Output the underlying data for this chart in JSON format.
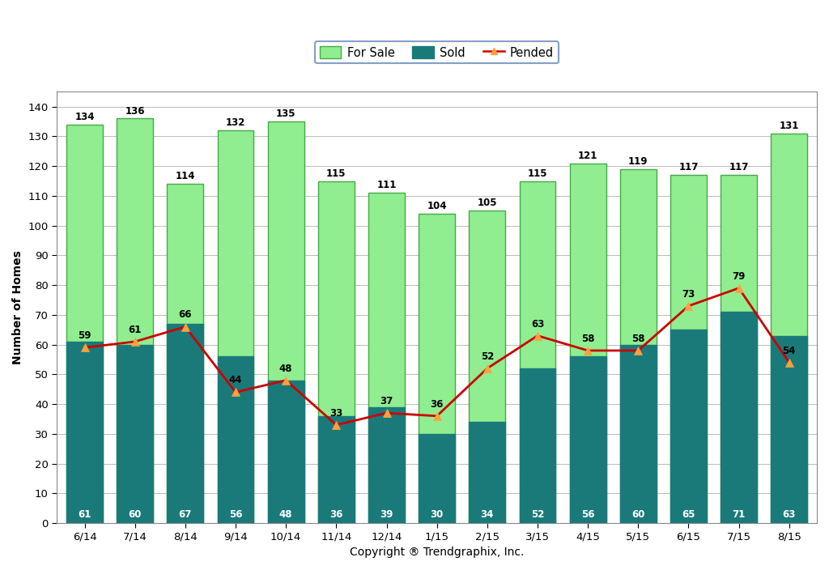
{
  "categories": [
    "6/14",
    "7/14",
    "8/14",
    "9/14",
    "10/14",
    "11/14",
    "12/14",
    "1/15",
    "2/15",
    "3/15",
    "4/15",
    "5/15",
    "6/15",
    "7/15",
    "8/15"
  ],
  "for_sale": [
    134,
    136,
    114,
    132,
    135,
    115,
    111,
    104,
    105,
    115,
    121,
    119,
    117,
    117,
    131
  ],
  "sold": [
    61,
    60,
    67,
    56,
    48,
    36,
    39,
    30,
    34,
    52,
    56,
    60,
    65,
    71,
    63
  ],
  "pended": [
    59,
    61,
    66,
    44,
    48,
    33,
    37,
    36,
    52,
    63,
    58,
    58,
    73,
    79,
    54
  ],
  "for_sale_color": "#90EE90",
  "sold_color": "#1A7A7A",
  "pended_line_color": "#CC0000",
  "pended_marker_color": "#FFA040",
  "bar_edge_color": "#44AA44",
  "sold_edge_color": "#1A7A7A",
  "ylabel": "Number of Homes",
  "xlabel": "Copyright ® Trendgraphix, Inc.",
  "ylim": [
    0,
    145
  ],
  "yticks": [
    0,
    10,
    20,
    30,
    40,
    50,
    60,
    70,
    80,
    90,
    100,
    110,
    120,
    130,
    140
  ],
  "legend_for_sale": "For Sale",
  "legend_sold": "Sold",
  "legend_pended": "Pended",
  "bar_width": 0.72,
  "background_color": "#FFFFFF",
  "plot_bg_color": "#FFFFFF",
  "grid_color": "#BBBBBB",
  "font_size_labels": 8.5,
  "font_size_axis_label": 10,
  "font_size_ticks": 9.5,
  "sold_label_color": "#FFFFFF",
  "for_sale_label_color": "#000000",
  "pended_label_color": "#000000"
}
